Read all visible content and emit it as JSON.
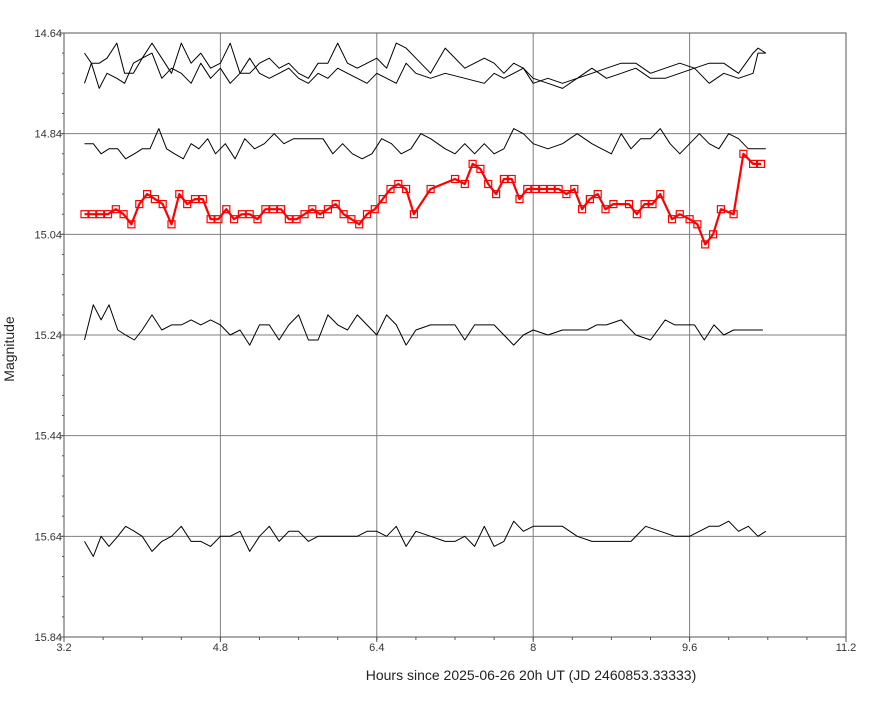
{
  "chart_data": {
    "type": "line",
    "title": "",
    "xlabel": "Hours since 2025-06-26 20h UT (JD 2460853.33333)",
    "ylabel": "Magnitude",
    "xlim": [
      3.2,
      11.2
    ],
    "ylim": [
      14.64,
      15.84
    ],
    "y_inverted": true,
    "grid": true,
    "x_ticks": [
      "3.2",
      "4.8",
      "6.4",
      "8",
      "9.6",
      "11.2"
    ],
    "y_ticks": [
      "14.64",
      "14.84",
      "15.04",
      "15.24",
      "15.44",
      "15.64",
      "15.84"
    ],
    "colors": {
      "target": "#ff0000",
      "comparison": "#000000",
      "grid": "#7f7f7f"
    },
    "series": [
      {
        "role": "comparison-1",
        "x": [
          3.41,
          3.48,
          3.56,
          3.64,
          3.74,
          3.82,
          3.91,
          4.0,
          4.1,
          4.2,
          4.3,
          4.4,
          4.5,
          4.6,
          4.7,
          4.8,
          4.9,
          5.0,
          5.1,
          5.2,
          5.3,
          5.4,
          5.5,
          5.6,
          5.7,
          5.8,
          5.9,
          6.0,
          6.1,
          6.2,
          6.3,
          6.4,
          6.5,
          6.6,
          6.7,
          6.8,
          6.95,
          7.1,
          7.3,
          7.5,
          7.6,
          7.7,
          7.8,
          7.9,
          8.0,
          8.15,
          8.3,
          8.45,
          8.6,
          8.75,
          8.9,
          9.05,
          9.2,
          9.35,
          9.5,
          9.65,
          9.8,
          9.95,
          10.1,
          10.25,
          10.3,
          10.38
        ],
        "y": [
          14.68,
          14.7,
          14.7,
          14.69,
          14.66,
          14.72,
          14.72,
          14.69,
          14.66,
          14.69,
          14.72,
          14.66,
          14.7,
          14.68,
          14.71,
          14.7,
          14.66,
          14.72,
          14.72,
          14.7,
          14.69,
          14.71,
          14.7,
          14.72,
          14.73,
          14.7,
          14.7,
          14.66,
          14.7,
          14.71,
          14.7,
          14.69,
          14.71,
          14.66,
          14.67,
          14.69,
          14.72,
          14.67,
          14.71,
          14.69,
          14.7,
          14.72,
          14.7,
          14.71,
          14.73,
          14.74,
          14.75,
          14.73,
          14.72,
          14.71,
          14.7,
          14.7,
          14.72,
          14.71,
          14.7,
          14.71,
          14.7,
          14.7,
          14.72,
          14.68,
          14.67,
          14.68
        ]
      },
      {
        "role": "comparison-2",
        "x": [
          3.41,
          3.48,
          3.56,
          3.64,
          3.74,
          3.82,
          3.91,
          4.0,
          4.1,
          4.2,
          4.3,
          4.4,
          4.5,
          4.6,
          4.7,
          4.8,
          4.9,
          5.0,
          5.1,
          5.2,
          5.3,
          5.4,
          5.5,
          5.6,
          5.7,
          5.8,
          5.9,
          6.0,
          6.1,
          6.2,
          6.3,
          6.4,
          6.5,
          6.6,
          6.7,
          6.8,
          6.95,
          7.1,
          7.3,
          7.5,
          7.6,
          7.7,
          7.8,
          7.9,
          8.0,
          8.15,
          8.3,
          8.45,
          8.6,
          8.75,
          8.9,
          9.05,
          9.2,
          9.35,
          9.5,
          9.65,
          9.8,
          9.95,
          10.1,
          10.25,
          10.3,
          10.38
        ],
        "y": [
          14.74,
          14.7,
          14.75,
          14.72,
          14.73,
          14.74,
          14.7,
          14.69,
          14.68,
          14.73,
          14.71,
          14.72,
          14.74,
          14.7,
          14.73,
          14.71,
          14.74,
          14.72,
          14.69,
          14.72,
          14.73,
          14.72,
          14.71,
          14.73,
          14.74,
          14.72,
          14.73,
          14.71,
          14.72,
          14.73,
          14.74,
          14.72,
          14.73,
          14.74,
          14.7,
          14.72,
          14.73,
          14.72,
          14.73,
          14.74,
          14.72,
          14.73,
          14.72,
          14.71,
          14.74,
          14.73,
          14.74,
          14.73,
          14.71,
          14.73,
          14.72,
          14.71,
          14.73,
          14.73,
          14.72,
          14.71,
          14.74,
          14.72,
          14.73,
          14.72,
          14.68,
          14.68
        ]
      },
      {
        "role": "comparison-3",
        "x": [
          3.41,
          3.5,
          3.58,
          3.66,
          3.75,
          3.83,
          3.92,
          4.0,
          4.08,
          4.17,
          4.25,
          4.33,
          4.42,
          4.5,
          4.58,
          4.67,
          4.75,
          4.85,
          4.95,
          5.05,
          5.15,
          5.25,
          5.35,
          5.45,
          5.55,
          5.65,
          5.75,
          5.85,
          5.95,
          6.05,
          6.15,
          6.25,
          6.35,
          6.45,
          6.55,
          6.65,
          6.75,
          6.85,
          6.95,
          7.1,
          7.2,
          7.3,
          7.4,
          7.5,
          7.6,
          7.7,
          7.8,
          7.9,
          8.0,
          8.15,
          8.3,
          8.45,
          8.6,
          8.7,
          8.8,
          8.9,
          9.0,
          9.1,
          9.2,
          9.3,
          9.4,
          9.5,
          9.6,
          9.7,
          9.8,
          9.9,
          10.0,
          10.1,
          10.2,
          10.3,
          10.38
        ],
        "y": [
          14.86,
          14.86,
          14.88,
          14.87,
          14.87,
          14.89,
          14.88,
          14.87,
          14.87,
          14.83,
          14.87,
          14.88,
          14.89,
          14.86,
          14.87,
          14.85,
          14.88,
          14.86,
          14.89,
          14.85,
          14.87,
          14.86,
          14.84,
          14.86,
          14.85,
          14.85,
          14.85,
          14.85,
          14.88,
          14.86,
          14.88,
          14.89,
          14.88,
          14.85,
          14.86,
          14.88,
          14.87,
          14.84,
          14.85,
          14.87,
          14.88,
          14.86,
          14.88,
          14.86,
          14.88,
          14.87,
          14.83,
          14.84,
          14.86,
          14.87,
          14.86,
          14.84,
          14.86,
          14.87,
          14.88,
          14.84,
          14.87,
          14.85,
          14.85,
          14.83,
          14.86,
          14.88,
          14.86,
          14.84,
          14.86,
          14.87,
          14.84,
          14.85,
          14.87,
          14.87,
          14.87
        ]
      },
      {
        "role": "target",
        "x": [
          3.41,
          3.49,
          3.57,
          3.65,
          3.73,
          3.81,
          3.89,
          3.97,
          4.05,
          4.13,
          4.21,
          4.3,
          4.38,
          4.46,
          4.54,
          4.62,
          4.7,
          4.78,
          4.86,
          4.94,
          5.02,
          5.1,
          5.18,
          5.26,
          5.34,
          5.42,
          5.5,
          5.58,
          5.66,
          5.74,
          5.82,
          5.9,
          5.98,
          6.06,
          6.14,
          6.22,
          6.3,
          6.38,
          6.46,
          6.54,
          6.62,
          6.7,
          6.78,
          6.95,
          7.2,
          7.3,
          7.38,
          7.46,
          7.54,
          7.62,
          7.7,
          7.78,
          7.86,
          7.94,
          8.02,
          8.1,
          8.18,
          8.26,
          8.34,
          8.42,
          8.5,
          8.58,
          8.66,
          8.74,
          8.82,
          8.98,
          9.06,
          9.14,
          9.22,
          9.3,
          9.42,
          9.5,
          9.6,
          9.68,
          9.76,
          9.84,
          9.92,
          10.05,
          10.15,
          10.25,
          10.33
        ],
        "y": [
          15.0,
          15.0,
          15.0,
          15.0,
          14.99,
          15.0,
          15.02,
          14.98,
          14.96,
          14.97,
          14.98,
          15.02,
          14.96,
          14.98,
          14.97,
          14.97,
          15.01,
          15.01,
          14.99,
          15.01,
          15.0,
          15.0,
          15.01,
          14.99,
          14.99,
          14.99,
          15.01,
          15.01,
          15.0,
          14.99,
          15.0,
          14.99,
          14.98,
          15.0,
          15.01,
          15.02,
          15.0,
          14.99,
          14.97,
          14.95,
          14.94,
          14.95,
          15.0,
          14.95,
          14.93,
          14.94,
          14.9,
          14.91,
          14.94,
          14.96,
          14.93,
          14.93,
          14.97,
          14.95,
          14.95,
          14.95,
          14.95,
          14.95,
          14.96,
          14.95,
          14.99,
          14.97,
          14.96,
          14.99,
          14.98,
          14.98,
          15.0,
          14.98,
          14.98,
          14.96,
          15.01,
          15.0,
          15.01,
          15.02,
          15.06,
          15.04,
          14.99,
          15.0,
          14.88,
          14.9,
          14.9
        ]
      },
      {
        "role": "comparison-4",
        "x": [
          3.41,
          3.5,
          3.58,
          3.66,
          3.75,
          3.83,
          3.92,
          4.0,
          4.1,
          4.2,
          4.3,
          4.4,
          4.5,
          4.6,
          4.7,
          4.8,
          4.9,
          5.0,
          5.1,
          5.2,
          5.3,
          5.4,
          5.5,
          5.6,
          5.7,
          5.8,
          5.9,
          6.0,
          6.1,
          6.2,
          6.3,
          6.4,
          6.5,
          6.6,
          6.7,
          6.8,
          6.95,
          7.1,
          7.2,
          7.3,
          7.4,
          7.5,
          7.6,
          7.7,
          7.8,
          7.9,
          8.0,
          8.15,
          8.3,
          8.45,
          8.55,
          8.65,
          8.75,
          8.9,
          9.05,
          9.2,
          9.35,
          9.45,
          9.55,
          9.65,
          9.75,
          9.85,
          9.95,
          10.05,
          10.15,
          10.25,
          10.35
        ],
        "y": [
          15.25,
          15.18,
          15.21,
          15.18,
          15.23,
          15.24,
          15.25,
          15.23,
          15.2,
          15.23,
          15.22,
          15.22,
          15.21,
          15.22,
          15.21,
          15.22,
          15.24,
          15.23,
          15.26,
          15.22,
          15.22,
          15.25,
          15.22,
          15.2,
          15.25,
          15.25,
          15.2,
          15.22,
          15.23,
          15.2,
          15.22,
          15.24,
          15.2,
          15.22,
          15.26,
          15.23,
          15.22,
          15.22,
          15.22,
          15.25,
          15.22,
          15.22,
          15.22,
          15.24,
          15.26,
          15.24,
          15.23,
          15.24,
          15.23,
          15.23,
          15.23,
          15.22,
          15.22,
          15.21,
          15.24,
          15.25,
          15.21,
          15.22,
          15.22,
          15.22,
          15.25,
          15.22,
          15.24,
          15.23,
          15.23,
          15.23,
          15.23
        ]
      },
      {
        "role": "comparison-5",
        "x": [
          3.41,
          3.5,
          3.58,
          3.66,
          3.75,
          3.83,
          3.92,
          4.0,
          4.1,
          4.2,
          4.3,
          4.4,
          4.5,
          4.6,
          4.7,
          4.8,
          4.9,
          5.0,
          5.1,
          5.2,
          5.3,
          5.4,
          5.5,
          5.6,
          5.7,
          5.8,
          5.9,
          6.0,
          6.1,
          6.2,
          6.3,
          6.4,
          6.5,
          6.6,
          6.7,
          6.8,
          6.95,
          7.1,
          7.2,
          7.3,
          7.4,
          7.5,
          7.6,
          7.7,
          7.8,
          7.9,
          8.0,
          8.15,
          8.3,
          8.45,
          8.6,
          8.8,
          9.0,
          9.15,
          9.3,
          9.45,
          9.6,
          9.7,
          9.8,
          9.9,
          10.0,
          10.1,
          10.2,
          10.3,
          10.38
        ],
        "y": [
          15.65,
          15.68,
          15.64,
          15.66,
          15.64,
          15.62,
          15.63,
          15.64,
          15.67,
          15.65,
          15.64,
          15.62,
          15.65,
          15.65,
          15.66,
          15.64,
          15.64,
          15.63,
          15.67,
          15.64,
          15.62,
          15.65,
          15.63,
          15.63,
          15.65,
          15.64,
          15.64,
          15.64,
          15.64,
          15.64,
          15.63,
          15.63,
          15.64,
          15.62,
          15.66,
          15.63,
          15.64,
          15.65,
          15.65,
          15.64,
          15.66,
          15.62,
          15.66,
          15.65,
          15.61,
          15.63,
          15.62,
          15.62,
          15.62,
          15.64,
          15.65,
          15.65,
          15.65,
          15.62,
          15.63,
          15.64,
          15.64,
          15.63,
          15.62,
          15.62,
          15.61,
          15.63,
          15.62,
          15.64,
          15.63
        ]
      }
    ]
  }
}
